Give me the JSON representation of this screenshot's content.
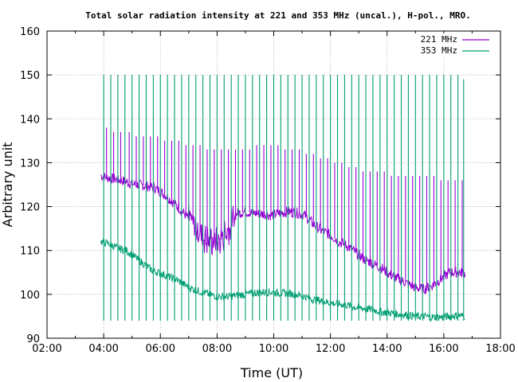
{
  "chart_data": {
    "type": "line",
    "title": "Total solar radiation intensity at 221 and 353 MHz (uncal.), H-pol., MRO.",
    "xlabel": "Time (UT)",
    "ylabel": "Arbitrary unit",
    "xlim": [
      2,
      18
    ],
    "ylim": [
      90,
      160
    ],
    "x_ticks": [
      2,
      3,
      4,
      5,
      6,
      7,
      8,
      9,
      10,
      11,
      12,
      13,
      14,
      15,
      16,
      17,
      18
    ],
    "x_tick_labels": [
      "02:00",
      "",
      "04:00",
      "",
      "06:00",
      "",
      "08:00",
      "",
      "10:00",
      "",
      "12:00",
      "",
      "14:00",
      "",
      "16:00",
      "",
      "18:00"
    ],
    "y_ticks": [
      90,
      100,
      110,
      120,
      130,
      140,
      150,
      160
    ],
    "y_tick_labels": [
      "90",
      "100",
      "110",
      "120",
      "130",
      "140",
      "150",
      "160"
    ],
    "grid": true,
    "legend_position": "top-right",
    "series": [
      {
        "name": "221 MHz",
        "color": "#9400d3",
        "x": [
          3.9,
          4.2,
          4.6,
          5.0,
          5.4,
          5.8,
          6.2,
          6.6,
          6.9,
          7.2,
          7.5,
          7.8,
          8.1,
          8.4,
          8.7,
          9.0,
          9.3,
          9.6,
          9.9,
          10.2,
          10.5,
          10.8,
          11.1,
          11.4,
          11.7,
          12.0,
          12.3,
          12.6,
          12.9,
          13.2,
          13.5,
          13.8,
          14.1,
          14.4,
          14.7,
          15.0,
          15.3,
          15.6,
          15.9,
          16.2,
          16.5,
          16.75
        ],
        "values": [
          127.0,
          126.5,
          126.0,
          125.2,
          124.8,
          124.3,
          122.5,
          120.0,
          118.0,
          115.5,
          113.5,
          112.0,
          112.0,
          115.0,
          118.5,
          118.8,
          118.5,
          118.3,
          118.0,
          118.5,
          118.8,
          118.6,
          118.0,
          116.0,
          114.5,
          113.5,
          112.0,
          111.0,
          109.5,
          108.0,
          107.0,
          106.0,
          104.5,
          103.5,
          102.5,
          101.5,
          101.2,
          102.0,
          103.5,
          105.0,
          105.0,
          104.8
        ],
        "spikes": [
          4.1,
          4.35,
          4.6,
          4.9,
          5.15,
          5.4,
          5.65,
          5.9,
          6.15,
          6.4,
          6.65,
          6.9,
          7.15,
          7.4,
          7.65,
          7.9,
          8.15,
          8.4,
          8.65,
          8.9,
          9.15,
          9.4,
          9.65,
          9.9,
          10.15,
          10.4,
          10.65,
          10.9,
          11.15,
          11.4,
          11.65,
          11.9,
          12.15,
          12.4,
          12.65,
          12.9,
          13.15,
          13.4,
          13.65,
          13.9,
          14.15,
          14.4,
          14.65,
          14.9,
          15.15,
          15.4,
          15.65,
          15.9,
          16.15,
          16.4,
          16.65
        ],
        "spike_peaks": [
          138,
          137,
          137,
          137,
          136,
          136,
          136,
          136,
          135,
          135,
          135,
          134,
          134,
          134,
          133,
          133,
          133,
          133,
          133,
          133,
          133,
          134,
          134,
          134,
          134,
          133,
          133,
          133,
          132,
          132,
          131,
          131,
          130,
          130,
          129,
          129,
          128,
          128,
          128,
          128,
          127,
          127,
          127,
          127,
          127,
          127,
          127,
          126,
          126,
          126,
          126
        ]
      },
      {
        "name": "353 MHz",
        "color": "#009e73",
        "x": [
          3.9,
          4.2,
          4.5,
          4.8,
          5.1,
          5.4,
          5.7,
          6.0,
          6.3,
          6.6,
          6.9,
          7.2,
          7.5,
          7.8,
          8.1,
          8.4,
          8.7,
          9.0,
          9.3,
          9.6,
          9.9,
          10.2,
          10.5,
          10.8,
          11.1,
          11.4,
          11.7,
          12.0,
          12.3,
          12.6,
          12.9,
          13.2,
          13.5,
          13.8,
          14.1,
          14.4,
          14.7,
          15.0,
          15.3,
          15.6,
          15.9,
          16.2,
          16.5,
          16.75
        ],
        "values": [
          112.0,
          111.5,
          110.5,
          110.0,
          108.5,
          107.0,
          105.5,
          104.8,
          104.0,
          103.2,
          102.0,
          101.0,
          100.5,
          99.8,
          99.5,
          99.5,
          99.8,
          100.0,
          100.3,
          100.5,
          100.5,
          100.3,
          100.2,
          100.0,
          99.5,
          98.8,
          98.5,
          98.0,
          97.8,
          97.5,
          97.0,
          96.8,
          96.5,
          96.0,
          95.8,
          95.5,
          95.3,
          95.0,
          95.0,
          94.8,
          94.8,
          95.0,
          95.2,
          95.0
        ],
        "spikes": [
          4.0,
          4.25,
          4.5,
          4.75,
          5.0,
          5.25,
          5.5,
          5.75,
          6.0,
          6.25,
          6.5,
          6.75,
          7.0,
          7.25,
          7.5,
          7.75,
          8.0,
          8.25,
          8.5,
          8.75,
          9.0,
          9.25,
          9.5,
          9.75,
          10.0,
          10.25,
          10.5,
          10.75,
          11.0,
          11.25,
          11.5,
          11.75,
          12.0,
          12.25,
          12.5,
          12.75,
          13.0,
          13.25,
          13.5,
          13.75,
          14.0,
          14.25,
          14.5,
          14.75,
          15.0,
          15.25,
          15.5,
          15.75,
          16.0,
          16.25,
          16.5,
          16.7
        ],
        "spike_peaks": [
          150,
          150,
          150,
          150,
          150,
          150,
          150,
          150,
          150,
          150,
          150,
          150,
          150,
          150,
          150,
          150,
          150,
          150,
          150,
          150,
          150,
          150,
          150,
          150,
          150,
          150,
          150,
          150,
          150,
          150,
          150,
          150,
          150,
          150,
          150,
          150,
          150,
          150,
          150,
          150,
          150,
          150,
          150,
          150,
          150,
          150,
          150,
          150,
          150,
          150,
          150,
          149
        ],
        "spike_floor": 94
      }
    ]
  }
}
